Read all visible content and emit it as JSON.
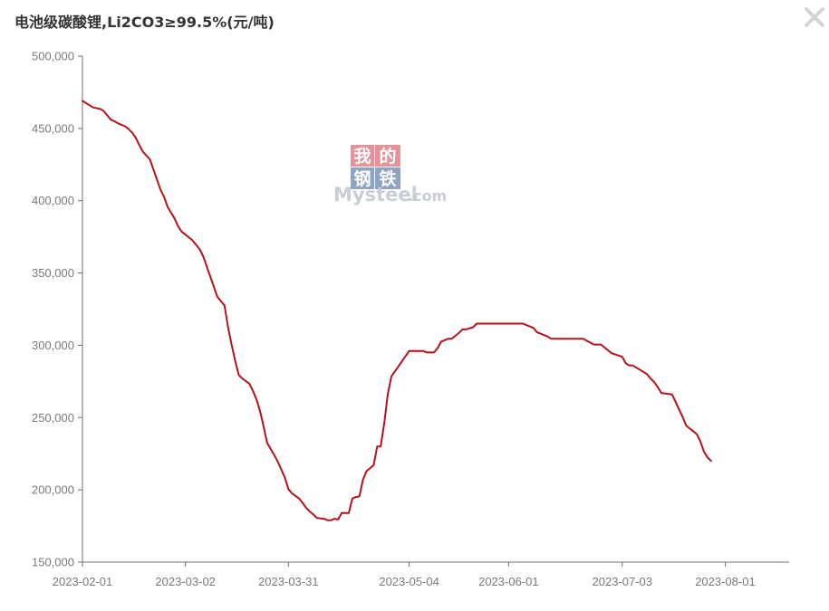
{
  "header": {
    "title": "电池级碳酸锂,Li2CO3≥99.5%(元/吨)",
    "close_icon": "close-icon"
  },
  "colors": {
    "line": "#b5121b",
    "axis": "#6e7079",
    "tick_text": "#7a7a7a",
    "watermark_red": "#e4939a",
    "watermark_blue": "#8fa3c4",
    "watermark_gray": "#c9ced6"
  },
  "watermark": {
    "cn_chars": [
      "我",
      "的",
      "钢",
      "铁"
    ],
    "brand": "Mysteel",
    "domain": ".com"
  },
  "chart_data": {
    "type": "line",
    "title": "电池级碳酸锂,Li2CO3≥99.5%(元/吨)",
    "xlabel": "",
    "ylabel": "",
    "x_ticks": [
      "2023-02-01",
      "2023-03-02",
      "2023-03-31",
      "2023-05-04",
      "2023-06-01",
      "2023-07-03",
      "2023-08-01"
    ],
    "y_ticks": [
      "500,000",
      "450,000",
      "400,000",
      "350,000",
      "300,000",
      "250,000",
      "200,000",
      "150,000"
    ],
    "ylim": [
      150000,
      500000
    ],
    "xlim": [
      "2023-02-01",
      "2023-08-19"
    ],
    "grid": false,
    "legend": "none",
    "series": [
      {
        "points": [
          [
            "2023-02-01",
            469000
          ],
          [
            "2023-02-02",
            467500
          ],
          [
            "2023-02-03",
            466000
          ],
          [
            "2023-02-04",
            464500
          ],
          [
            "2023-02-06",
            463500
          ],
          [
            "2023-02-07",
            462000
          ],
          [
            "2023-02-08",
            459000
          ],
          [
            "2023-02-09",
            456000
          ],
          [
            "2023-02-10",
            455000
          ],
          [
            "2023-02-11",
            453500
          ],
          [
            "2023-02-13",
            451500
          ],
          [
            "2023-02-14",
            449500
          ],
          [
            "2023-02-15",
            447000
          ],
          [
            "2023-02-16",
            443500
          ],
          [
            "2023-02-17",
            438500
          ],
          [
            "2023-02-18",
            434000
          ],
          [
            "2023-02-20",
            428500
          ],
          [
            "2023-02-21",
            421500
          ],
          [
            "2023-02-22",
            414500
          ],
          [
            "2023-02-23",
            407500
          ],
          [
            "2023-02-24",
            402500
          ],
          [
            "2023-02-25",
            395500
          ],
          [
            "2023-02-27",
            387500
          ],
          [
            "2023-02-28",
            382000
          ],
          [
            "2023-03-01",
            378500
          ],
          [
            "2023-03-02",
            376500
          ],
          [
            "2023-03-03",
            374500
          ],
          [
            "2023-03-04",
            372500
          ],
          [
            "2023-03-06",
            366500
          ],
          [
            "2023-03-07",
            361500
          ],
          [
            "2023-03-08",
            354500
          ],
          [
            "2023-03-09",
            347500
          ],
          [
            "2023-03-10",
            340500
          ],
          [
            "2023-03-11",
            333500
          ],
          [
            "2023-03-13",
            327500
          ],
          [
            "2023-03-14",
            312500
          ],
          [
            "2023-03-15",
            300500
          ],
          [
            "2023-03-16",
            289500
          ],
          [
            "2023-03-17",
            279500
          ],
          [
            "2023-03-18",
            277000
          ],
          [
            "2023-03-20",
            273500
          ],
          [
            "2023-03-21",
            268500
          ],
          [
            "2023-03-22",
            262500
          ],
          [
            "2023-03-23",
            254500
          ],
          [
            "2023-03-24",
            244000
          ],
          [
            "2023-03-25",
            232500
          ],
          [
            "2023-03-27",
            224000
          ],
          [
            "2023-03-28",
            219500
          ],
          [
            "2023-03-29",
            214000
          ],
          [
            "2023-03-30",
            208500
          ],
          [
            "2023-03-31",
            200500
          ],
          [
            "2023-04-01",
            197500
          ],
          [
            "2023-04-03",
            194000
          ],
          [
            "2023-04-04",
            191000
          ],
          [
            "2023-04-05",
            187500
          ],
          [
            "2023-04-06",
            185000
          ],
          [
            "2023-04-07",
            183000
          ],
          [
            "2023-04-08",
            180500
          ],
          [
            "2023-04-10",
            180000
          ],
          [
            "2023-04-11",
            179000
          ],
          [
            "2023-04-12",
            179000
          ],
          [
            "2023-04-13",
            180000
          ],
          [
            "2023-04-14",
            179500
          ],
          [
            "2023-04-15",
            184000
          ],
          [
            "2023-04-17",
            184000
          ],
          [
            "2023-04-18",
            194000
          ],
          [
            "2023-04-19",
            195000
          ],
          [
            "2023-04-20",
            195500
          ],
          [
            "2023-04-21",
            207000
          ],
          [
            "2023-04-22",
            213000
          ],
          [
            "2023-04-24",
            217000
          ],
          [
            "2023-04-25",
            230000
          ],
          [
            "2023-04-26",
            230000
          ],
          [
            "2023-04-27",
            246500
          ],
          [
            "2023-04-28",
            266500
          ],
          [
            "2023-04-29",
            278500
          ],
          [
            "2023-05-04",
            296000
          ],
          [
            "2023-05-05",
            296000
          ],
          [
            "2023-05-06",
            296000
          ],
          [
            "2023-05-08",
            296000
          ],
          [
            "2023-05-09",
            295000
          ],
          [
            "2023-05-10",
            295000
          ],
          [
            "2023-05-11",
            295000
          ],
          [
            "2023-05-12",
            298000
          ],
          [
            "2023-05-13",
            302500
          ],
          [
            "2023-05-15",
            304500
          ],
          [
            "2023-05-16",
            304500
          ],
          [
            "2023-05-17",
            306500
          ],
          [
            "2023-05-18",
            308500
          ],
          [
            "2023-05-19",
            311000
          ],
          [
            "2023-05-20",
            311000
          ],
          [
            "2023-05-22",
            312500
          ],
          [
            "2023-05-23",
            315000
          ],
          [
            "2023-05-24",
            315000
          ],
          [
            "2023-05-25",
            315000
          ],
          [
            "2023-05-26",
            315000
          ],
          [
            "2023-05-29",
            315000
          ],
          [
            "2023-05-31",
            315000
          ],
          [
            "2023-06-01",
            315000
          ],
          [
            "2023-06-02",
            315000
          ],
          [
            "2023-06-05",
            315000
          ],
          [
            "2023-06-06",
            314000
          ],
          [
            "2023-06-07",
            313000
          ],
          [
            "2023-06-08",
            312000
          ],
          [
            "2023-06-09",
            309000
          ],
          [
            "2023-06-12",
            306000
          ],
          [
            "2023-06-13",
            304500
          ],
          [
            "2023-06-14",
            304500
          ],
          [
            "2023-06-15",
            304500
          ],
          [
            "2023-06-16",
            304500
          ],
          [
            "2023-06-19",
            304500
          ],
          [
            "2023-06-20",
            304500
          ],
          [
            "2023-06-21",
            304500
          ],
          [
            "2023-06-22",
            304500
          ],
          [
            "2023-06-25",
            300500
          ],
          [
            "2023-06-26",
            300500
          ],
          [
            "2023-06-27",
            300500
          ],
          [
            "2023-06-28",
            298500
          ],
          [
            "2023-06-29",
            296500
          ],
          [
            "2023-06-30",
            294500
          ],
          [
            "2023-07-03",
            292000
          ],
          [
            "2023-07-04",
            287500
          ],
          [
            "2023-07-05",
            286000
          ],
          [
            "2023-07-06",
            286000
          ],
          [
            "2023-07-07",
            284500
          ],
          [
            "2023-07-10",
            280000
          ],
          [
            "2023-07-11",
            277000
          ],
          [
            "2023-07-12",
            274500
          ],
          [
            "2023-07-13",
            271000
          ],
          [
            "2023-07-14",
            267000
          ],
          [
            "2023-07-17",
            266000
          ],
          [
            "2023-07-18",
            261000
          ],
          [
            "2023-07-19",
            255500
          ],
          [
            "2023-07-20",
            250500
          ],
          [
            "2023-07-21",
            244500
          ],
          [
            "2023-07-24",
            238500
          ],
          [
            "2023-07-25",
            233500
          ],
          [
            "2023-07-26",
            226500
          ],
          [
            "2023-07-27",
            222500
          ],
          [
            "2023-07-28",
            220000
          ]
        ]
      }
    ]
  }
}
